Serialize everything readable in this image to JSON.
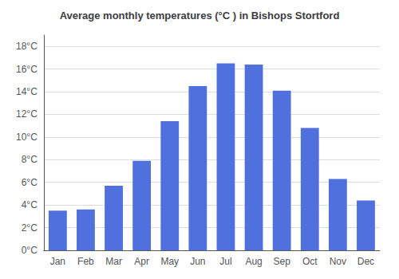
{
  "chart_data": {
    "type": "bar",
    "title": "Average monthly temperatures (°C ) in Bishops Stortford",
    "categories": [
      "Jan",
      "Feb",
      "Mar",
      "Apr",
      "May",
      "Jun",
      "Jul",
      "Aug",
      "Sep",
      "Oct",
      "Nov",
      "Dec"
    ],
    "values": [
      3.5,
      3.6,
      5.7,
      7.9,
      11.4,
      14.5,
      16.5,
      16.4,
      14.1,
      10.8,
      6.3,
      4.4
    ],
    "ylim": [
      0,
      19
    ],
    "yticks": [
      {
        "value": 0,
        "label": "0°C"
      },
      {
        "value": 2,
        "label": "2°C"
      },
      {
        "value": 4,
        "label": "4°C"
      },
      {
        "value": 6,
        "label": "6°C"
      },
      {
        "value": 8,
        "label": "8°C"
      },
      {
        "value": 10,
        "label": "10°C"
      },
      {
        "value": 12,
        "label": "12°C"
      },
      {
        "value": 14,
        "label": "14°C"
      },
      {
        "value": 16,
        "label": "16°C"
      },
      {
        "value": 18,
        "label": "18°C"
      }
    ],
    "grid": true
  }
}
